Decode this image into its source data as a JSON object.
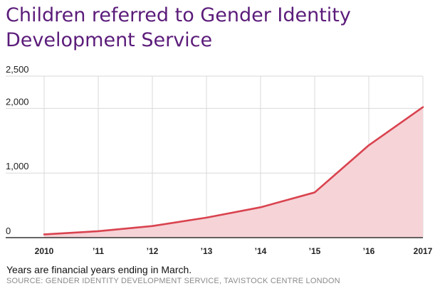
{
  "title_lines": [
    "Children referred to Gender Identity",
    "Development Service"
  ],
  "note": "Years are financial years ending in March.",
  "source": "SOURCE: GENDER IDENTITY DEVELOPMENT SERVICE, TAVISTOCK CENTRE LONDON",
  "colors": {
    "title": "#5b1c7a",
    "line": "#d9434f",
    "area": "#f6d3d7",
    "grid": "#d9d9d9"
  },
  "chart_data": {
    "type": "area",
    "title": "Children referred to Gender Identity Development Service",
    "x": [
      "2010",
      "'11",
      "'12",
      "'13",
      "'14",
      "'15",
      "'16",
      "'17"
    ],
    "x_tick_labels": [
      "2010",
      "’11",
      "’12",
      "’13",
      "’14",
      "’15",
      "’16",
      "2017"
    ],
    "series": [
      {
        "values": [
          50,
          100,
          180,
          310,
          470,
          700,
          1430,
          2020
        ]
      }
    ],
    "y_ticks": [
      0,
      1000,
      2000,
      2500
    ],
    "y_tick_labels": [
      "0",
      "1,000",
      "2,000",
      "2,500"
    ],
    "ylim": [
      0,
      2500
    ],
    "xlabel": "",
    "ylabel": "",
    "grid": true,
    "note": "Years are financial years ending in March."
  }
}
